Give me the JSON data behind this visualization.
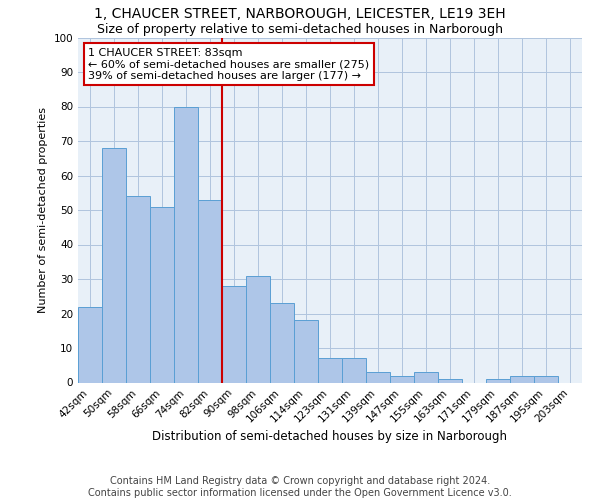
{
  "title": "1, CHAUCER STREET, NARBOROUGH, LEICESTER, LE19 3EH",
  "subtitle": "Size of property relative to semi-detached houses in Narborough",
  "xlabel": "Distribution of semi-detached houses by size in Narborough",
  "ylabel": "Number of semi-detached properties",
  "categories": [
    "42sqm",
    "50sqm",
    "58sqm",
    "66sqm",
    "74sqm",
    "82sqm",
    "90sqm",
    "98sqm",
    "106sqm",
    "114sqm",
    "123sqm",
    "131sqm",
    "139sqm",
    "147sqm",
    "155sqm",
    "163sqm",
    "171sqm",
    "179sqm",
    "187sqm",
    "195sqm",
    "203sqm"
  ],
  "values": [
    22,
    68,
    54,
    51,
    80,
    53,
    28,
    31,
    23,
    18,
    7,
    7,
    3,
    2,
    3,
    1,
    0,
    1,
    2,
    2,
    0
  ],
  "bar_color": "#aec6e8",
  "bar_edge_color": "#5a9fd4",
  "vline_color": "#cc0000",
  "vline_x": 5.5,
  "annotation_text": "1 CHAUCER STREET: 83sqm\n← 60% of semi-detached houses are smaller (275)\n39% of semi-detached houses are larger (177) →",
  "annotation_box_color": "#cc0000",
  "ylim": [
    0,
    100
  ],
  "yticks": [
    0,
    10,
    20,
    30,
    40,
    50,
    60,
    70,
    80,
    90,
    100
  ],
  "grid_color": "#b0c4de",
  "background_color": "#e8f0f8",
  "footer_line1": "Contains HM Land Registry data © Crown copyright and database right 2024.",
  "footer_line2": "Contains public sector information licensed under the Open Government Licence v3.0.",
  "title_fontsize": 10,
  "subtitle_fontsize": 9,
  "xlabel_fontsize": 8.5,
  "ylabel_fontsize": 8,
  "tick_fontsize": 7.5,
  "annotation_fontsize": 8,
  "footer_fontsize": 7
}
